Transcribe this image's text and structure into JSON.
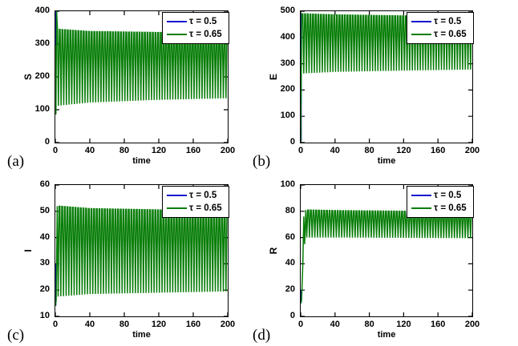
{
  "figure": {
    "description": "2x2 grid of MATLAB-style time-series plots comparing delay values tau for S, E, I, R populations",
    "background": "#ffffff",
    "axis_color": "#000000"
  },
  "chart_data": [
    {
      "panel_label": "(a)",
      "type": "line",
      "xlabel": "time",
      "ylabel": "S",
      "xlim": [
        0,
        200
      ],
      "ylim": [
        0,
        400
      ],
      "xticks": [
        0,
        40,
        80,
        120,
        160,
        200
      ],
      "yticks": [
        0,
        100,
        200,
        300,
        400
      ],
      "legend_position": "top-right",
      "legend": [
        {
          "label": "τ = 0.5",
          "color": "#1212d0"
        },
        {
          "label": "τ = 0.65",
          "color": "#077d07"
        }
      ],
      "series": {
        "tau_0_5": {
          "name": "τ = 0.5",
          "color": "#1212d0",
          "visible_in_plot": false,
          "initial_spike": {
            "x": 0.5,
            "y_from": 86,
            "y_to": 400
          }
        },
        "tau_0_65": {
          "name": "τ = 0.65",
          "color": "#077d07",
          "waveform": "sustained high-frequency oscillation",
          "transient": [
            [
              0,
              295
            ],
            [
              0.7,
              86
            ],
            [
              1.5,
              400
            ],
            [
              2.5,
              345
            ]
          ],
          "envelope": [
            {
              "x": 2.5,
              "lo": 112,
              "hi": 345
            },
            {
              "x": 40,
              "lo": 122,
              "hi": 338
            },
            {
              "x": 120,
              "lo": 130,
              "hi": 335
            },
            {
              "x": 200,
              "lo": 135,
              "hi": 333
            }
          ],
          "cycles": 64
        }
      }
    },
    {
      "panel_label": "(b)",
      "type": "line",
      "xlabel": "time",
      "ylabel": "E",
      "xlim": [
        0,
        200
      ],
      "ylim": [
        0,
        500
      ],
      "xticks": [
        0,
        40,
        80,
        120,
        160,
        200
      ],
      "yticks": [
        0,
        100,
        200,
        300,
        400,
        500
      ],
      "legend_position": "top-right",
      "legend": [
        {
          "label": "τ = 0.5",
          "color": "#1212d0"
        },
        {
          "label": "τ = 0.65",
          "color": "#077d07"
        }
      ],
      "series": {
        "tau_0_5": {
          "name": "τ = 0.5",
          "color": "#1212d0",
          "visible_in_plot": false,
          "initial_spike": {
            "x": 0.5,
            "y_from": 5,
            "y_to": 490
          }
        },
        "tau_0_65": {
          "name": "τ = 0.65",
          "color": "#077d07",
          "waveform": "sustained high-frequency oscillation",
          "transient": [
            [
              0,
              5
            ],
            [
              1.3,
              490
            ],
            [
              2.5,
              490
            ]
          ],
          "envelope": [
            {
              "x": 2.5,
              "lo": 263,
              "hi": 490
            },
            {
              "x": 40,
              "lo": 269,
              "hi": 486
            },
            {
              "x": 120,
              "lo": 274,
              "hi": 482
            },
            {
              "x": 200,
              "lo": 278,
              "hi": 479
            }
          ],
          "cycles": 64
        }
      }
    },
    {
      "panel_label": "(c)",
      "type": "line",
      "xlabel": "time",
      "ylabel": "I",
      "xlim": [
        0,
        200
      ],
      "ylim": [
        10,
        60
      ],
      "xticks": [
        0,
        40,
        80,
        120,
        160,
        200
      ],
      "yticks": [
        10,
        20,
        30,
        40,
        50,
        60
      ],
      "legend_position": "top-right",
      "legend": [
        {
          "label": "τ = 0.5",
          "color": "#1212d0"
        },
        {
          "label": "τ = 0.65",
          "color": "#077d07"
        }
      ],
      "series": {
        "tau_0_5": {
          "name": "τ = 0.5",
          "color": "#1212d0",
          "visible_in_plot": false,
          "initial_spike": {
            "x": 0.5,
            "y_from": 14,
            "y_to": 30
          }
        },
        "tau_0_65": {
          "name": "τ = 0.65",
          "color": "#077d07",
          "waveform": "sustained high-frequency oscillation",
          "transient": [
            [
              0,
              14
            ],
            [
              1,
              16
            ],
            [
              2.2,
              52
            ]
          ],
          "envelope": [
            {
              "x": 2.2,
              "lo": 17.5,
              "hi": 52
            },
            {
              "x": 40,
              "lo": 18.5,
              "hi": 51
            },
            {
              "x": 120,
              "lo": 19,
              "hi": 50.5
            },
            {
              "x": 200,
              "lo": 19.5,
              "hi": 50
            }
          ],
          "cycles": 64
        }
      }
    },
    {
      "panel_label": "(d)",
      "type": "line",
      "xlabel": "time",
      "ylabel": "R",
      "xlim": [
        0,
        200
      ],
      "ylim": [
        0,
        100
      ],
      "xticks": [
        0,
        40,
        80,
        120,
        160,
        200
      ],
      "yticks": [
        0,
        20,
        40,
        60,
        80,
        100
      ],
      "legend_position": "top-right",
      "legend": [
        {
          "label": "τ = 0.5",
          "color": "#1212d0"
        },
        {
          "label": "τ = 0.65",
          "color": "#077d07"
        }
      ],
      "series": {
        "tau_0_5": {
          "name": "τ = 0.5",
          "color": "#1212d0",
          "visible_in_plot": false,
          "initial_spike": {
            "x": 0.5,
            "y_from": 10,
            "y_to": 20
          }
        },
        "tau_0_65": {
          "name": "τ = 0.65",
          "color": "#077d07",
          "waveform": "sustained high-frequency oscillation",
          "transient": [
            [
              0,
              10
            ],
            [
              1,
              12
            ],
            [
              2.5,
              40
            ],
            [
              3.6,
              76
            ],
            [
              4.6,
              55
            ],
            [
              6,
              81
            ]
          ],
          "envelope": [
            {
              "x": 6,
              "lo": 60,
              "hi": 81
            },
            {
              "x": 40,
              "lo": 60,
              "hi": 80.5
            },
            {
              "x": 120,
              "lo": 59.8,
              "hi": 80
            },
            {
              "x": 200,
              "lo": 59.5,
              "hi": 79.5
            }
          ],
          "cycles": 62
        }
      }
    }
  ]
}
